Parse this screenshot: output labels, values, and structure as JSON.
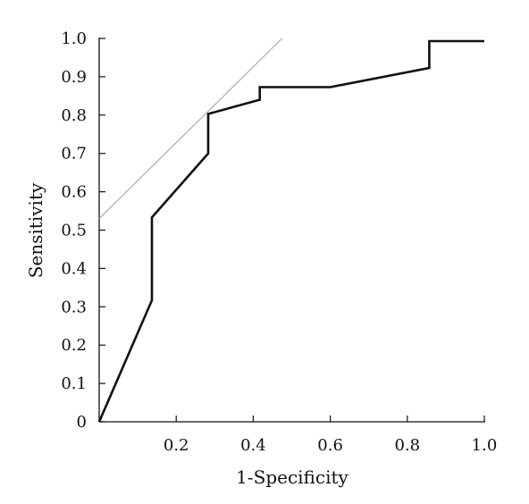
{
  "chart_data": {
    "type": "line",
    "title": "",
    "xlabel": "1-Specificity",
    "ylabel": "Sensitivity",
    "xlim": [
      0,
      1.0
    ],
    "ylim": [
      0,
      1.0
    ],
    "x_ticks": [
      0.2,
      0.4,
      0.6,
      0.8,
      1.0
    ],
    "x_tick_labels": [
      "0.2",
      "0.4",
      "0.6",
      "0.8",
      "1.0"
    ],
    "y_ticks": [
      0,
      0.1,
      0.2,
      0.3,
      0.4,
      0.5,
      0.6,
      0.7,
      0.8,
      0.9,
      1.0
    ],
    "y_tick_labels": [
      "0",
      "0.1",
      "0.2",
      "0.3",
      "0.4",
      "0.5",
      "0.6",
      "0.7",
      "0.8",
      "0.9",
      "1.0"
    ],
    "grid": false,
    "legend": "none",
    "series": [
      {
        "x": [
          0,
          0.137,
          0.137,
          0.283,
          0.283,
          0.417,
          0.417,
          0.6,
          0.857,
          0.857,
          1.0
        ],
        "y": [
          0,
          0.317,
          0.533,
          0.7,
          0.803,
          0.84,
          0.873,
          0.873,
          0.923,
          0.993,
          0.993
        ],
        "color": "#111111"
      },
      {
        "x": [
          0,
          0.475
        ],
        "y": [
          0.53,
          1.0
        ],
        "color": "#aaaaaa"
      }
    ]
  }
}
